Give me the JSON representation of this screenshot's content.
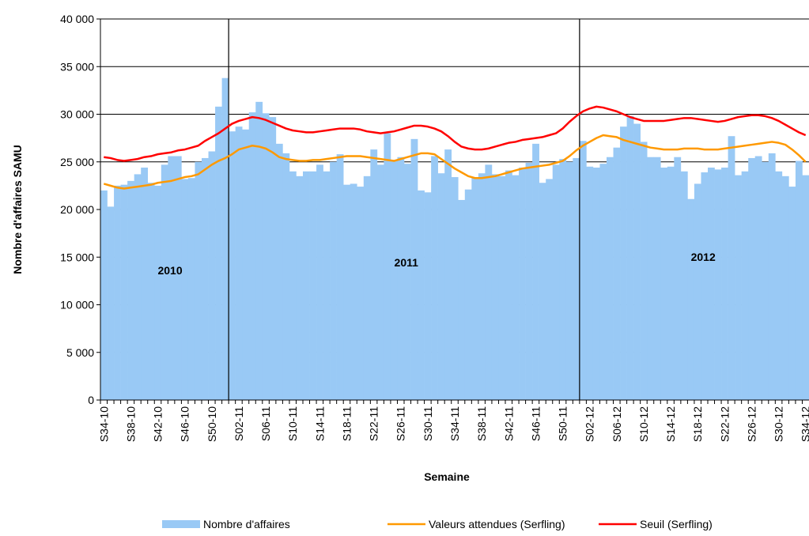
{
  "chart_data": {
    "type": "bar",
    "x_label": "Semaine",
    "y_label": "Nombre d'affaires SAMU",
    "annotations": [
      "2010",
      "2011",
      "2012"
    ],
    "categories": [
      "S34-10",
      null,
      null,
      null,
      "S38-10",
      null,
      null,
      null,
      "S42-10",
      null,
      null,
      null,
      "S46-10",
      null,
      null,
      null,
      "S50-10",
      null,
      null,
      null,
      "S02-11",
      null,
      null,
      null,
      "S06-11",
      null,
      null,
      null,
      "S10-11",
      null,
      null,
      null,
      "S14-11",
      null,
      null,
      null,
      "S18-11",
      null,
      null,
      null,
      "S22-11",
      null,
      null,
      null,
      "S26-11",
      null,
      null,
      null,
      "S30-11",
      null,
      null,
      null,
      "S34-11",
      null,
      null,
      null,
      "S38-11",
      null,
      null,
      null,
      "S42-11",
      null,
      null,
      null,
      "S46-11",
      null,
      null,
      null,
      "S50-11",
      null,
      null,
      null,
      "S02-12",
      null,
      null,
      null,
      "S06-12",
      null,
      null,
      null,
      "S10-12",
      null,
      null,
      null,
      "S14-12",
      null,
      null,
      null,
      "S18-12",
      null,
      null,
      null,
      "S22-12",
      null,
      null,
      null,
      "S26-12",
      null,
      null,
      null,
      "S30-12",
      null,
      null,
      null,
      "S34-12"
    ],
    "series": [
      {
        "name": "Nombre d'affaires",
        "type": "bar",
        "color": "#99c9f5",
        "values": [
          22000,
          20300,
          22500,
          22600,
          23000,
          23700,
          24400,
          22800,
          22500,
          24700,
          25600,
          25600,
          23200,
          23300,
          25000,
          25400,
          26100,
          30800,
          33800,
          28200,
          28700,
          28400,
          30200,
          31300,
          30100,
          29700,
          26900,
          25900,
          24000,
          23500,
          24000,
          24000,
          24700,
          24000,
          25000,
          25800,
          22600,
          22700,
          22400,
          23500,
          26300,
          24700,
          28000,
          25200,
          25500,
          24800,
          27400,
          22000,
          21800,
          25600,
          23800,
          26300,
          23400,
          21000,
          22100,
          23300,
          23800,
          24700,
          23700,
          23500,
          24100,
          23600,
          24400,
          24900,
          26900,
          22800,
          23200,
          24700,
          25300,
          25000,
          25400,
          27200,
          24500,
          24400,
          24800,
          25500,
          26500,
          28700,
          29800,
          29000,
          27100,
          25500,
          25500,
          24400,
          24500,
          25500,
          24000,
          21100,
          22700,
          23900,
          24400,
          24200,
          24400,
          27700,
          23600,
          24000,
          25400,
          25600,
          25000,
          25900,
          24000,
          23500,
          22400,
          25100,
          23600
        ]
      },
      {
        "name": "Valeurs attendues (Serfling)",
        "type": "line",
        "color": "#ff9900",
        "values": [
          22700,
          22500,
          22300,
          22200,
          22300,
          22400,
          22500,
          22600,
          22800,
          22900,
          23000,
          23200,
          23400,
          23500,
          23700,
          24200,
          24700,
          25100,
          25400,
          25800,
          26300,
          26500,
          26700,
          26600,
          26400,
          26000,
          25500,
          25300,
          25200,
          25100,
          25100,
          25200,
          25200,
          25300,
          25400,
          25500,
          25600,
          25600,
          25600,
          25500,
          25400,
          25300,
          25200,
          25100,
          25300,
          25500,
          25700,
          25900,
          25900,
          25800,
          25300,
          24800,
          24300,
          23900,
          23500,
          23300,
          23300,
          23400,
          23500,
          23700,
          23900,
          24100,
          24300,
          24400,
          24500,
          24600,
          24700,
          24900,
          25100,
          25600,
          26200,
          26700,
          27100,
          27500,
          27800,
          27700,
          27600,
          27300,
          27100,
          26900,
          26700,
          26500,
          26400,
          26300,
          26300,
          26300,
          26400,
          26400,
          26400,
          26300,
          26300,
          26300,
          26400,
          26500,
          26600,
          26700,
          26800,
          26900,
          27000,
          27100,
          27000,
          26800,
          26300,
          25700,
          25000
        ]
      },
      {
        "name": "Seuil (Serfling)",
        "type": "line",
        "color": "#ff0000",
        "values": [
          25500,
          25400,
          25200,
          25100,
          25200,
          25300,
          25500,
          25600,
          25800,
          25900,
          26000,
          26200,
          26300,
          26500,
          26700,
          27200,
          27600,
          28000,
          28500,
          29000,
          29300,
          29500,
          29700,
          29600,
          29400,
          29100,
          28800,
          28500,
          28300,
          28200,
          28100,
          28100,
          28200,
          28300,
          28400,
          28500,
          28500,
          28500,
          28400,
          28200,
          28100,
          28000,
          28100,
          28200,
          28400,
          28600,
          28800,
          28800,
          28700,
          28500,
          28200,
          27700,
          27100,
          26600,
          26400,
          26300,
          26300,
          26400,
          26600,
          26800,
          27000,
          27100,
          27300,
          27400,
          27500,
          27600,
          27800,
          28000,
          28500,
          29200,
          29800,
          30300,
          30600,
          30800,
          30700,
          30500,
          30300,
          30000,
          29700,
          29500,
          29300,
          29300,
          29300,
          29300,
          29400,
          29500,
          29600,
          29600,
          29500,
          29400,
          29300,
          29200,
          29300,
          29500,
          29700,
          29800,
          29900,
          29900,
          29800,
          29600,
          29300,
          28900,
          28500,
          28100,
          27800
        ]
      }
    ],
    "ylim": [
      0,
      40000
    ],
    "yticks": [
      0,
      {
        "value": 5000,
        "label": "5 000"
      },
      {
        "value": 10000,
        "label": "10 000"
      },
      {
        "value": 15000,
        "label": "15 000"
      },
      {
        "value": 20000,
        "label": "20 000"
      },
      {
        "value": 25000,
        "label": "25 000"
      },
      {
        "value": 30000,
        "label": "30 000"
      },
      {
        "value": 35000,
        "label": "35 000"
      },
      {
        "value": 40000,
        "label": "40 000"
      }
    ],
    "grid": true
  }
}
